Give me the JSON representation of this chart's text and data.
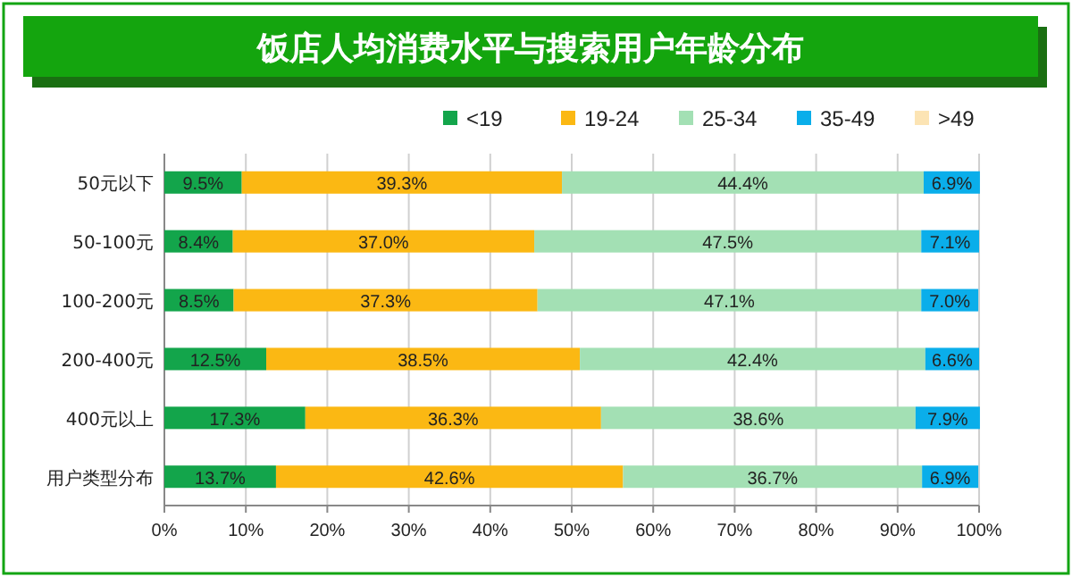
{
  "chart_data": {
    "type": "bar",
    "orientation": "horizontal",
    "stacked": true,
    "title": "饭店人均消费水平与搜索用户年龄分布",
    "categories": [
      "50元以下",
      "50-100元",
      "100-200元",
      "200-400元",
      "400元以上",
      "用户类型分布"
    ],
    "series": [
      {
        "name": "<19",
        "color": "#13a54b",
        "values": [
          9.5,
          8.4,
          8.5,
          12.5,
          17.3,
          13.7
        ],
        "value_labels": [
          "9.5%",
          "8.4%",
          "8.5%",
          "12.5%",
          "17.3%",
          "13.7%"
        ]
      },
      {
        "name": "19-24",
        "color": "#fbb813",
        "values": [
          39.3,
          37.0,
          37.3,
          38.5,
          36.3,
          42.6
        ],
        "value_labels": [
          "39.3%",
          "37.0%",
          "37.3%",
          "38.5%",
          "36.3%",
          "42.6%"
        ]
      },
      {
        "name": "25-34",
        "color": "#a3e0b4",
        "values": [
          44.4,
          47.5,
          47.1,
          42.4,
          38.6,
          36.7
        ],
        "value_labels": [
          "44.4%",
          "47.5%",
          "47.1%",
          "42.4%",
          "38.6%",
          "36.7%"
        ]
      },
      {
        "name": "35-49",
        "color": "#0aaeea",
        "values": [
          6.9,
          7.1,
          7.0,
          6.6,
          7.9,
          6.9
        ],
        "value_labels": [
          "6.9%",
          "7.1%",
          "7.0%",
          "6.6%",
          "7.9%",
          "6.9%"
        ]
      },
      {
        "name": ">49",
        "color": "#fce4b4",
        "values": [
          null,
          null,
          null,
          null,
          null,
          null
        ]
      }
    ],
    "xlim": [
      0,
      100
    ],
    "xticks": [
      {
        "value": 0,
        "label": "0%"
      },
      {
        "value": 10,
        "label": "10%"
      },
      {
        "value": 20,
        "label": "20%"
      },
      {
        "value": 30,
        "label": "30%"
      },
      {
        "value": 40,
        "label": "40%"
      },
      {
        "value": 50,
        "label": "50%"
      },
      {
        "value": 60,
        "label": "60%"
      },
      {
        "value": 70,
        "label": "70%"
      },
      {
        "value": 80,
        "label": "80%"
      },
      {
        "value": 90,
        "label": "90%"
      },
      {
        "value": 100,
        "label": "100%"
      }
    ],
    "grid": "x",
    "legend": "top right"
  }
}
